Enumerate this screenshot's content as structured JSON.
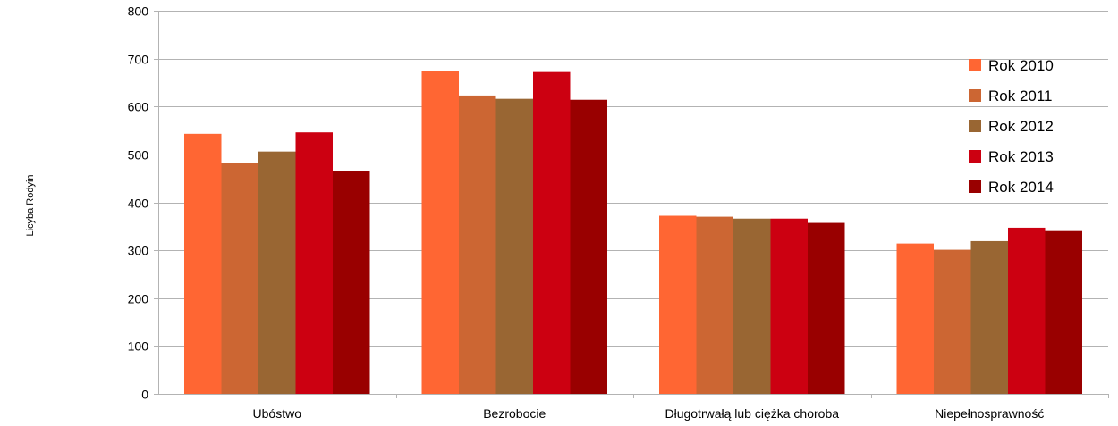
{
  "chart_data": {
    "type": "bar",
    "ylabel": "Licyba Rodyin",
    "xlabel": "",
    "ylim": [
      0,
      800
    ],
    "yticks": [
      0,
      100,
      200,
      300,
      400,
      500,
      600,
      700,
      800
    ],
    "grid": true,
    "legend_position": "right",
    "categories": [
      "Ubóstwo",
      "Bezrobocie",
      "Długotrwałą lub ciężka choroba",
      "Niepełnosprawność"
    ],
    "series": [
      {
        "name": "Rok 2010",
        "color": "#FF6633",
        "values": [
          543,
          675,
          372,
          314
        ]
      },
      {
        "name": "Rok 2011",
        "color": "#CC6633",
        "values": [
          482,
          623,
          370,
          301
        ]
      },
      {
        "name": "Rok 2012",
        "color": "#996633",
        "values": [
          506,
          616,
          366,
          319
        ]
      },
      {
        "name": "Rok 2013",
        "color": "#CC0011",
        "values": [
          546,
          672,
          366,
          347
        ]
      },
      {
        "name": "Rok 2014",
        "color": "#990000",
        "values": [
          466,
          614,
          357,
          340
        ]
      }
    ]
  }
}
